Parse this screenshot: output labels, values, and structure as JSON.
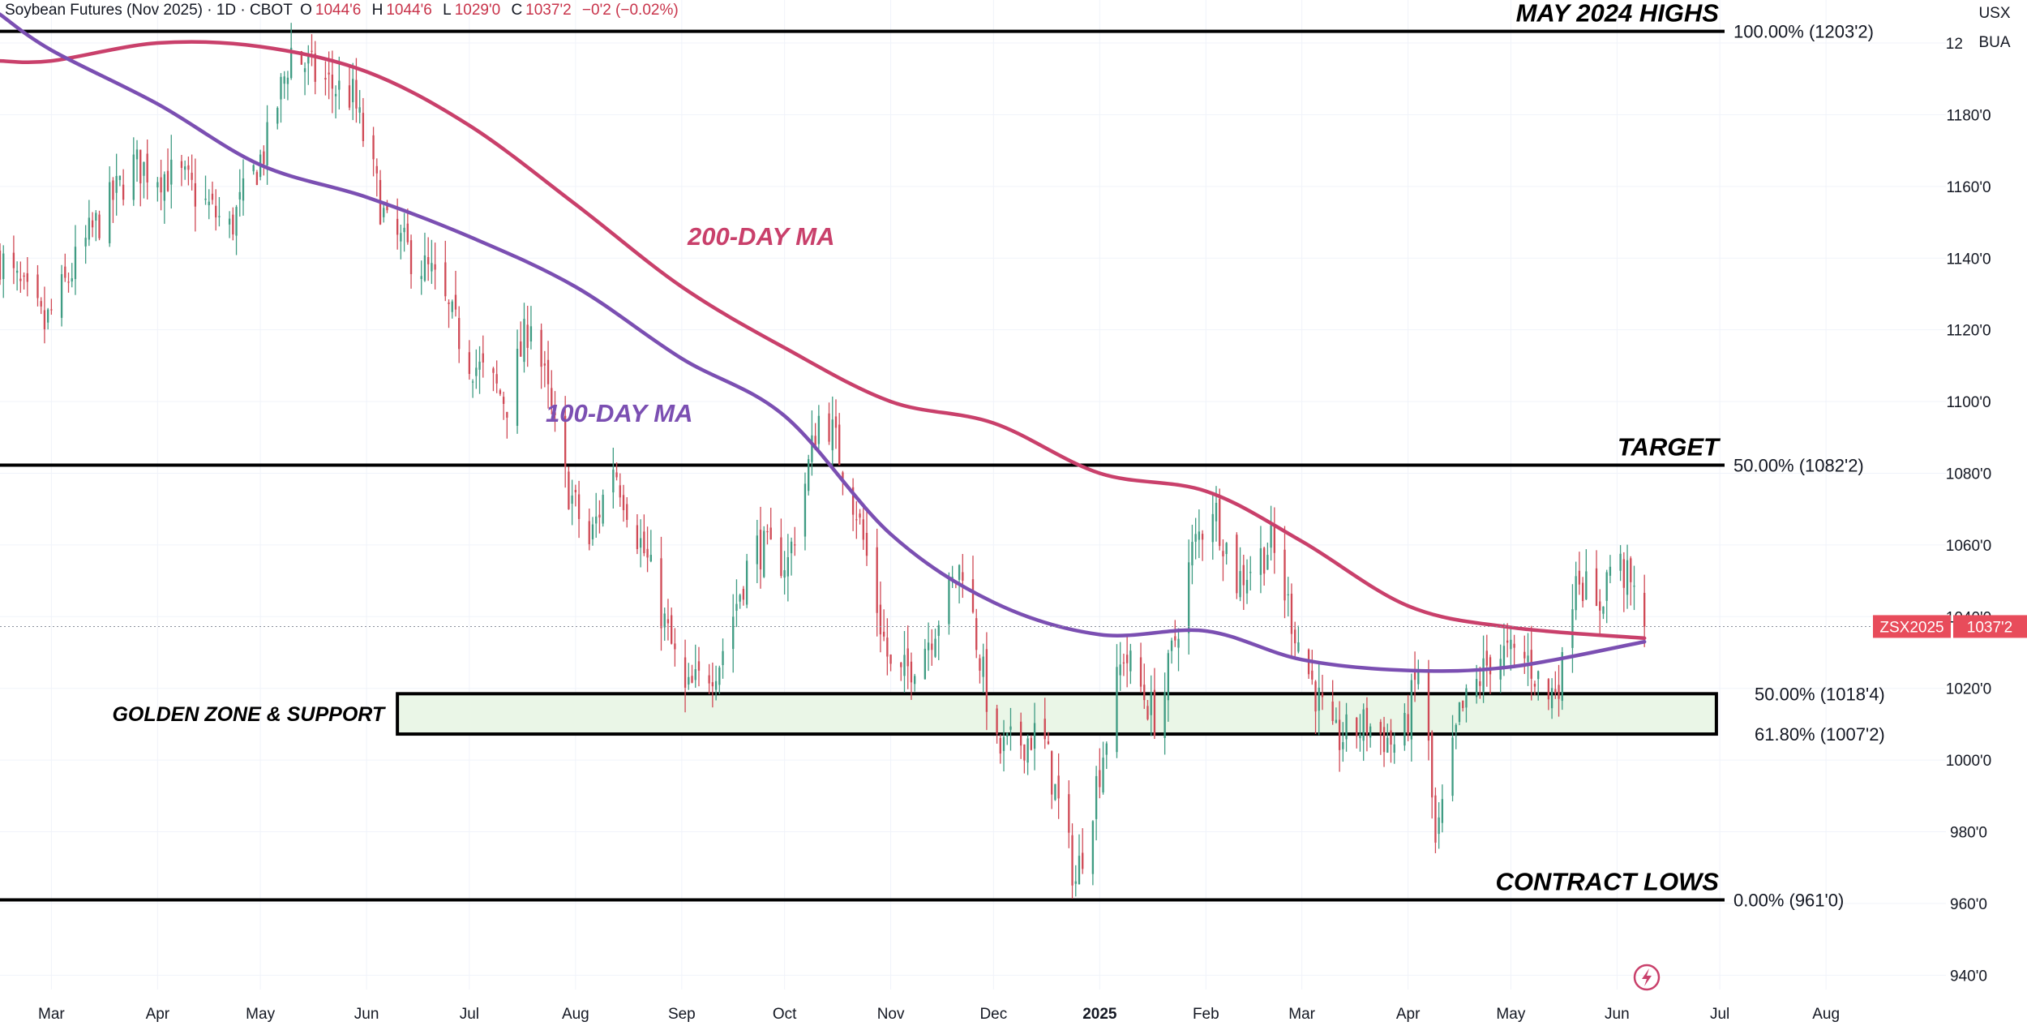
{
  "header": {
    "title": "Soybean Futures (Nov 2025) · 1D · CBOT",
    "open_label": "O",
    "open": "1044'6",
    "high_label": "H",
    "high": "1044'6",
    "low_label": "L",
    "low": "1029'0",
    "close_label": "C",
    "close": "1037'2",
    "change": "−0'2 (−0.02%)"
  },
  "scale_buttons": {
    "currency": "USX",
    "unit": "BUA"
  },
  "colors": {
    "up": "#3f9c83",
    "down": "#d04a56",
    "ma200": "#c9406b",
    "ma100": "#7b4fb2",
    "level_line": "#000000",
    "badge_bg": "#e84c5b",
    "zone_fill": "#eaf6e7",
    "grid": "#f0f3fa",
    "icon": "#c9406b"
  },
  "chart_data": {
    "type": "candlestick",
    "symbol": "ZSX2025",
    "last_price": "1037'2",
    "last_value": 1037.25,
    "y_axis": {
      "range": [
        936,
        1212
      ],
      "ticks": [
        940,
        960,
        980,
        1000,
        1020,
        1040,
        1060,
        1080,
        1100,
        1120,
        1140,
        1160,
        1180,
        1200
      ],
      "tick_labels": [
        "940'0",
        "960'0",
        "980'0",
        "1000'0",
        "1020'0",
        "1040'0",
        "1060'0",
        "1080'0",
        "1100'0",
        "1120'0",
        "1140'0",
        "1160'0",
        "1180'0",
        "1200'0"
      ]
    },
    "x_axis": {
      "range": [
        "2024-02-15",
        "2025-09-05"
      ],
      "ticks": [
        {
          "date": "2024-03-01",
          "label": "Mar",
          "bold": false
        },
        {
          "date": "2024-04-01",
          "label": "Apr",
          "bold": false
        },
        {
          "date": "2024-05-01",
          "label": "May",
          "bold": false
        },
        {
          "date": "2024-06-01",
          "label": "Jun",
          "bold": false
        },
        {
          "date": "2024-07-01",
          "label": "Jul",
          "bold": false
        },
        {
          "date": "2024-08-01",
          "label": "Aug",
          "bold": false
        },
        {
          "date": "2024-09-01",
          "label": "Sep",
          "bold": false
        },
        {
          "date": "2024-10-01",
          "label": "Oct",
          "bold": false
        },
        {
          "date": "2024-11-01",
          "label": "Nov",
          "bold": false
        },
        {
          "date": "2024-12-01",
          "label": "Dec",
          "bold": false
        },
        {
          "date": "2025-01-01",
          "label": "2025",
          "bold": true
        },
        {
          "date": "2025-02-01",
          "label": "Feb",
          "bold": false
        },
        {
          "date": "2025-03-01",
          "label": "Mar",
          "bold": false
        },
        {
          "date": "2025-04-01",
          "label": "Apr",
          "bold": false
        },
        {
          "date": "2025-05-01",
          "label": "May",
          "bold": false
        },
        {
          "date": "2025-06-01",
          "label": "Jun",
          "bold": false
        },
        {
          "date": "2025-07-01",
          "label": "Jul",
          "bold": false
        },
        {
          "date": "2025-08-01",
          "label": "Aug",
          "bold": false
        }
      ]
    },
    "closes": [
      {
        "date": "2024-02-15",
        "close": 1140
      },
      {
        "date": "2024-02-28",
        "close": 1121
      },
      {
        "date": "2024-03-12",
        "close": 1146
      },
      {
        "date": "2024-03-25",
        "close": 1166
      },
      {
        "date": "2024-04-08",
        "close": 1162
      },
      {
        "date": "2024-04-22",
        "close": 1148
      },
      {
        "date": "2024-05-03",
        "close": 1172
      },
      {
        "date": "2024-05-10",
        "close": 1198
      },
      {
        "date": "2024-05-18",
        "close": 1190
      },
      {
        "date": "2024-05-28",
        "close": 1185
      },
      {
        "date": "2024-06-07",
        "close": 1148
      },
      {
        "date": "2024-06-20",
        "close": 1135
      },
      {
        "date": "2024-07-01",
        "close": 1112
      },
      {
        "date": "2024-07-12",
        "close": 1100
      },
      {
        "date": "2024-07-19",
        "close": 1124
      },
      {
        "date": "2024-07-29",
        "close": 1078
      },
      {
        "date": "2024-08-05",
        "close": 1060
      },
      {
        "date": "2024-08-12",
        "close": 1083
      },
      {
        "date": "2024-08-22",
        "close": 1055
      },
      {
        "date": "2024-09-02",
        "close": 1018
      },
      {
        "date": "2024-09-12",
        "close": 1028
      },
      {
        "date": "2024-09-22",
        "close": 1060
      },
      {
        "date": "2024-10-02",
        "close": 1055
      },
      {
        "date": "2024-10-12",
        "close": 1100
      },
      {
        "date": "2024-10-22",
        "close": 1070
      },
      {
        "date": "2024-11-02",
        "close": 1020
      },
      {
        "date": "2024-11-12",
        "close": 1034
      },
      {
        "date": "2024-11-22",
        "close": 1055
      },
      {
        "date": "2024-12-02",
        "close": 1002
      },
      {
        "date": "2024-12-15",
        "close": 1008
      },
      {
        "date": "2024-12-25",
        "close": 966
      },
      {
        "date": "2025-01-08",
        "close": 1030
      },
      {
        "date": "2025-01-18",
        "close": 1010
      },
      {
        "date": "2025-01-28",
        "close": 1058
      },
      {
        "date": "2025-02-03",
        "close": 1072
      },
      {
        "date": "2025-02-10",
        "close": 1050
      },
      {
        "date": "2025-02-20",
        "close": 1060
      },
      {
        "date": "2025-03-01",
        "close": 1030
      },
      {
        "date": "2025-03-10",
        "close": 1005
      },
      {
        "date": "2025-03-20",
        "close": 1010
      },
      {
        "date": "2025-03-30",
        "close": 1003
      },
      {
        "date": "2025-04-05",
        "close": 1030
      },
      {
        "date": "2025-04-09",
        "close": 975
      },
      {
        "date": "2025-04-16",
        "close": 1012
      },
      {
        "date": "2025-04-26",
        "close": 1030
      },
      {
        "date": "2025-05-06",
        "close": 1028
      },
      {
        "date": "2025-05-12",
        "close": 1017
      },
      {
        "date": "2025-05-16",
        "close": 1025
      },
      {
        "date": "2025-05-20",
        "close": 1055
      },
      {
        "date": "2025-05-26",
        "close": 1040
      },
      {
        "date": "2025-05-31",
        "close": 1058
      },
      {
        "date": "2025-06-05",
        "close": 1048
      },
      {
        "date": "2025-06-09",
        "close": 1037.25
      }
    ],
    "moving_averages": [
      {
        "name": "200-DAY MA",
        "color_key": "ma200",
        "points": [
          {
            "date": "2024-02-15",
            "value": 1195
          },
          {
            "date": "2024-03-01",
            "value": 1195
          },
          {
            "date": "2024-04-01",
            "value": 1200
          },
          {
            "date": "2024-05-01",
            "value": 1199
          },
          {
            "date": "2024-06-01",
            "value": 1192
          },
          {
            "date": "2024-07-01",
            "value": 1177
          },
          {
            "date": "2024-08-01",
            "value": 1155
          },
          {
            "date": "2024-09-01",
            "value": 1132
          },
          {
            "date": "2024-10-01",
            "value": 1115
          },
          {
            "date": "2024-11-01",
            "value": 1100
          },
          {
            "date": "2024-12-01",
            "value": 1094
          },
          {
            "date": "2025-01-01",
            "value": 1080
          },
          {
            "date": "2025-02-01",
            "value": 1075
          },
          {
            "date": "2025-03-01",
            "value": 1061
          },
          {
            "date": "2025-04-01",
            "value": 1043
          },
          {
            "date": "2025-05-01",
            "value": 1037
          },
          {
            "date": "2025-06-09",
            "value": 1034
          }
        ]
      },
      {
        "name": "100-DAY MA",
        "color_key": "ma100",
        "points": [
          {
            "date": "2024-02-15",
            "value": 1208
          },
          {
            "date": "2024-03-01",
            "value": 1198
          },
          {
            "date": "2024-04-01",
            "value": 1183
          },
          {
            "date": "2024-05-01",
            "value": 1166
          },
          {
            "date": "2024-06-01",
            "value": 1157
          },
          {
            "date": "2024-07-01",
            "value": 1146
          },
          {
            "date": "2024-08-01",
            "value": 1132
          },
          {
            "date": "2024-09-01",
            "value": 1112
          },
          {
            "date": "2024-10-01",
            "value": 1096
          },
          {
            "date": "2024-11-01",
            "value": 1063
          },
          {
            "date": "2024-12-01",
            "value": 1044
          },
          {
            "date": "2025-01-01",
            "value": 1035
          },
          {
            "date": "2025-02-01",
            "value": 1036
          },
          {
            "date": "2025-03-01",
            "value": 1028
          },
          {
            "date": "2025-04-01",
            "value": 1025
          },
          {
            "date": "2025-05-01",
            "value": 1026
          },
          {
            "date": "2025-06-09",
            "value": 1033
          }
        ]
      }
    ],
    "levels": [
      {
        "value": 1203.25,
        "label": "100.00% (1203'2)",
        "annotation": "MAY 2024 HIGHS"
      },
      {
        "value": 1082.25,
        "label": "50.00% (1082'2)",
        "annotation": "TARGET"
      },
      {
        "value": 961.0,
        "label": "0.00% (961'0)",
        "annotation": "CONTRACT LOWS"
      }
    ],
    "zone": {
      "top": 1018.5,
      "bottom": 1007.25,
      "top_label": "50.00% (1018'4)",
      "bottom_label": "61.80% (1007'2)",
      "annotation": "GOLDEN ZONE & SUPPORT",
      "start_date": "2024-06-10",
      "end_date": "2025-06-30"
    }
  }
}
